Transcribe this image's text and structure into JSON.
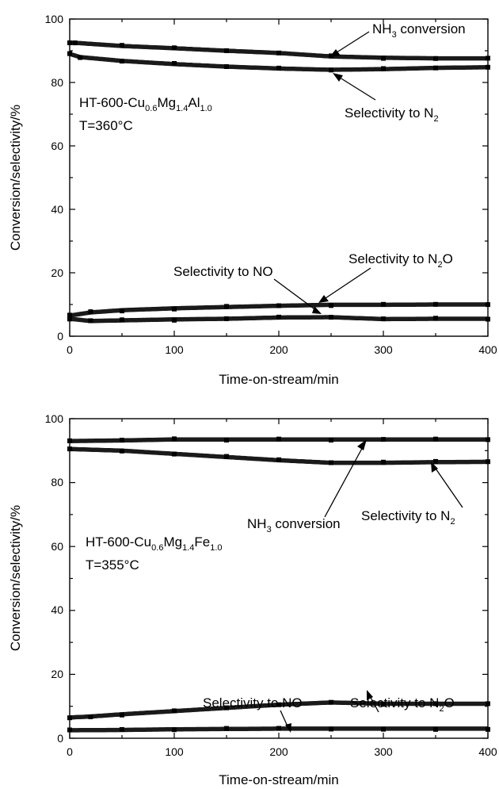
{
  "chart_data": [
    {
      "type": "line",
      "xlabel": "Time-on-stream/min",
      "ylabel": "Conversion/selectivity/%",
      "xlim": [
        0,
        400
      ],
      "ylim": [
        0,
        100
      ],
      "xticks": [
        "0",
        "100",
        "200",
        "300",
        "400"
      ],
      "yticks": [
        "0",
        "20",
        "40",
        "60",
        "80",
        "100"
      ],
      "sample_label": {
        "prefix": "HT-600-Cu",
        "sub1": "0.6",
        "mid1": "Mg",
        "sub2": "1.4",
        "mid2": "Al",
        "sub3": "1.0"
      },
      "temperature": "T=360°C",
      "annotations": {
        "nh3": {
          "pre": "NH",
          "sub": "3",
          "post": " conversion"
        },
        "n2": {
          "pre": "Selectivity to N",
          "sub": "2",
          "post": ""
        },
        "no": {
          "pre": "Selectivity to NO",
          "sub": "",
          "post": ""
        },
        "n2o": {
          "pre": "Selectivity to N",
          "sub": "2",
          "post": "O"
        }
      },
      "series": [
        {
          "key": "nh3",
          "x": [
            0,
            5,
            50,
            100,
            150,
            200,
            250,
            300,
            350,
            400
          ],
          "values": [
            92.5,
            92.5,
            91.5,
            90.8,
            90.0,
            89.3,
            88.2,
            87.8,
            87.6,
            87.6
          ]
        },
        {
          "key": "n2",
          "x": [
            0,
            10,
            50,
            100,
            150,
            200,
            250,
            300,
            350,
            400
          ],
          "values": [
            89.0,
            88.0,
            86.8,
            85.8,
            85.0,
            84.4,
            84.0,
            84.2,
            84.6,
            84.8
          ]
        },
        {
          "key": "n2o",
          "x": [
            0,
            20,
            50,
            100,
            150,
            200,
            250,
            300,
            350,
            400
          ],
          "values": [
            6.5,
            7.5,
            8.2,
            8.8,
            9.2,
            9.6,
            9.9,
            9.9,
            10.0,
            10.0
          ]
        },
        {
          "key": "no",
          "x": [
            0,
            20,
            50,
            100,
            150,
            200,
            250,
            300,
            350,
            400
          ],
          "values": [
            5.5,
            4.8,
            5.0,
            5.3,
            5.5,
            5.9,
            6.0,
            5.4,
            5.5,
            5.5
          ]
        }
      ]
    },
    {
      "type": "line",
      "xlabel": "Time-on-stream/min",
      "ylabel": "Conversion/selectivity/%",
      "xlim": [
        0,
        400
      ],
      "ylim": [
        0,
        100
      ],
      "xticks": [
        "0",
        "100",
        "200",
        "300",
        "400"
      ],
      "yticks": [
        "0",
        "20",
        "40",
        "60",
        "80",
        "100"
      ],
      "sample_label": {
        "prefix": "HT-600-Cu",
        "sub1": "0.6",
        "mid1": "Mg",
        "sub2": "1.4",
        "mid2": "Fe",
        "sub3": "1.0"
      },
      "temperature": "T=355°C",
      "annotations": {
        "nh3": {
          "pre": "NH",
          "sub": "3",
          "post": " conversion"
        },
        "n2": {
          "pre": "Selectivity to N",
          "sub": "2",
          "post": ""
        },
        "no": {
          "pre": "Selectivity to NO",
          "sub": "",
          "post": ""
        },
        "n2o": {
          "pre": "Selectivity to N",
          "sub": "2",
          "post": "O"
        }
      },
      "series": [
        {
          "key": "nh3",
          "x": [
            0,
            50,
            100,
            150,
            200,
            250,
            300,
            350,
            400
          ],
          "values": [
            93.0,
            93.2,
            93.5,
            93.5,
            93.5,
            93.5,
            93.5,
            93.5,
            93.5
          ]
        },
        {
          "key": "n2",
          "x": [
            0,
            50,
            100,
            150,
            200,
            250,
            300,
            350,
            400
          ],
          "values": [
            90.5,
            90.0,
            89.0,
            88.0,
            87.0,
            86.2,
            86.2,
            86.4,
            86.5
          ]
        },
        {
          "key": "n2o",
          "x": [
            0,
            20,
            50,
            100,
            150,
            200,
            250,
            300,
            350,
            400
          ],
          "values": [
            6.5,
            6.8,
            7.5,
            8.5,
            9.5,
            10.5,
            11.2,
            10.8,
            10.8,
            10.8
          ]
        },
        {
          "key": "no",
          "x": [
            0,
            50,
            100,
            150,
            200,
            250,
            300,
            350,
            400
          ],
          "values": [
            2.5,
            2.6,
            2.8,
            2.9,
            3.0,
            3.0,
            3.0,
            3.0,
            3.0
          ]
        }
      ]
    }
  ]
}
